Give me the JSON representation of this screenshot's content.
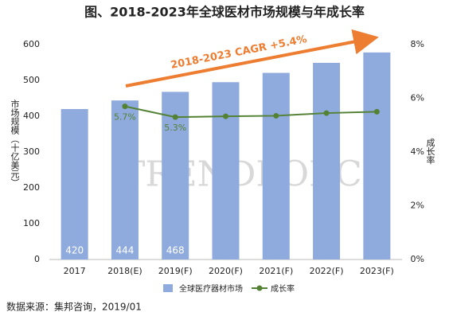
{
  "chart_data": {
    "type": "bar",
    "title": "图、2018-2023年全球医材市场规模与年成长率",
    "y_label": "市场规模（十亿美元）",
    "y2_label": "成长率",
    "annotation": "2018-2023 CAGR +5.4%",
    "watermark": "TRENDFORCE",
    "source": "数据来源：集邦咨询，2019/01",
    "categories": [
      "2017",
      "2018(E)",
      "2019(F)",
      "2020(F)",
      "2021(F)",
      "2022(F)",
      "2023(F)"
    ],
    "series": [
      {
        "name": "全球医疗器材市场",
        "type": "bar",
        "color": "#8faadc",
        "values": [
          420,
          444,
          468,
          495,
          521,
          549,
          578
        ],
        "value_labels": [
          "420",
          "444",
          "468",
          null,
          null,
          null,
          null
        ]
      },
      {
        "name": "成长率",
        "type": "line",
        "axis": "y2",
        "color": "#548235",
        "values": [
          null,
          5.7,
          5.3,
          5.33,
          5.35,
          5.45,
          5.5
        ],
        "value_labels": [
          null,
          "5.7%",
          "5.3%",
          null,
          null,
          null,
          null
        ]
      }
    ],
    "ylim": [
      0,
      600
    ],
    "yticks": [
      0,
      100,
      200,
      300,
      400,
      500,
      600
    ],
    "y2lim": [
      0,
      8
    ],
    "y2ticks": [
      {
        "value": 0,
        "label": "0%"
      },
      {
        "value": 2,
        "label": "2%"
      },
      {
        "value": 4,
        "label": "4%"
      },
      {
        "value": 6,
        "label": "6%"
      },
      {
        "value": 8,
        "label": "8%"
      }
    ],
    "grid": false
  }
}
